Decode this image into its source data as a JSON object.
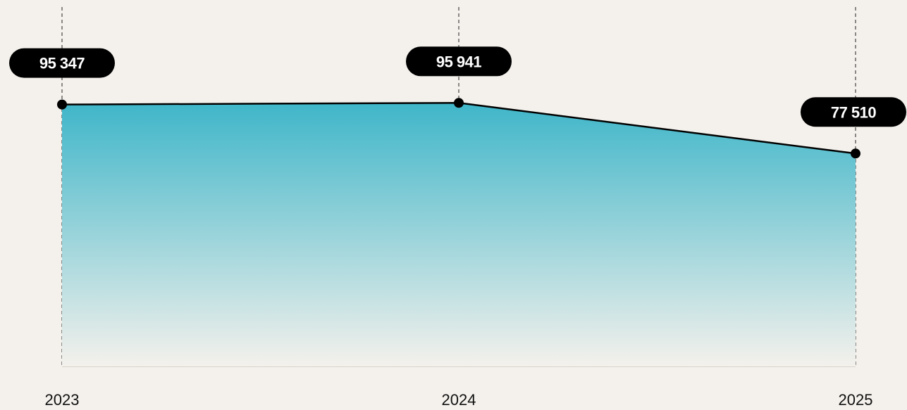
{
  "chart_data": {
    "type": "area",
    "x": [
      "2023",
      "2024",
      "2025"
    ],
    "series": [
      {
        "values": [
          95347,
          95941,
          77510
        ],
        "labels": [
          "95 347",
          "95 941",
          "77 510"
        ]
      }
    ],
    "colors": {
      "fill_top": "#3fb6c9",
      "fill_bottom": "#f4f1ec",
      "line": "#000000",
      "label_bg": "#000000",
      "label_text": "#ffffff",
      "gridline": "#444444",
      "background": "#f4f1ec"
    },
    "grid": "vertical-dashed-per-category",
    "ylim": [
      0,
      130000
    ]
  }
}
